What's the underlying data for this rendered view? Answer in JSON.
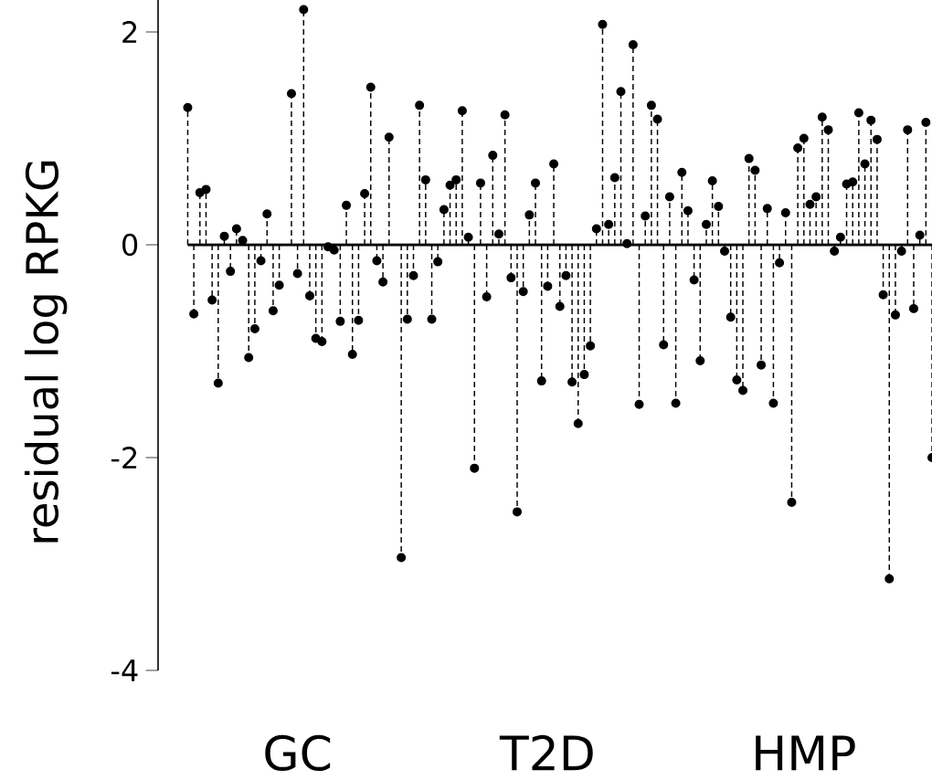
{
  "chart_data": {
    "type": "lollipop",
    "ylabel": "residual log RPKG",
    "categories": [
      null,
      null,
      null,
      null,
      null,
      null,
      null,
      null,
      null,
      null,
      null,
      null,
      null,
      null,
      null,
      null,
      null,
      null,
      "GC",
      null,
      null,
      null,
      null,
      null,
      null,
      null,
      null,
      null,
      null,
      null,
      null,
      null,
      null,
      null,
      null,
      null,
      null,
      null,
      null,
      null,
      null,
      null,
      null,
      null,
      null,
      null,
      null,
      null,
      null,
      null,
      null,
      null,
      null,
      null,
      null,
      null,
      null,
      null,
      null,
      "T2D",
      null,
      null,
      null,
      null,
      null,
      null,
      null,
      null,
      null,
      null,
      null,
      null,
      null,
      null,
      null,
      null,
      null,
      null,
      null,
      null,
      null,
      null,
      null,
      null,
      null,
      null,
      null,
      null,
      null,
      null,
      null,
      null,
      null,
      null,
      null,
      null,
      null,
      null,
      null,
      null,
      null,
      "HMP",
      null,
      null,
      null,
      null,
      null,
      null,
      null,
      null,
      null,
      null,
      null,
      null,
      null,
      null,
      null,
      null,
      null,
      null,
      null,
      null,
      null
    ],
    "values": [
      1.29,
      -0.65,
      0.49,
      0.52,
      -0.52,
      -1.3,
      0.08,
      -0.25,
      0.15,
      0.04,
      -1.06,
      -0.79,
      -0.15,
      0.29,
      -0.62,
      -0.38,
      null,
      1.42,
      -0.27,
      2.21,
      -0.48,
      -0.88,
      -0.91,
      -0.02,
      -0.05,
      -0.72,
      0.37,
      -1.03,
      -0.71,
      0.48,
      1.48,
      -0.15,
      -0.35,
      1.01,
      null,
      -2.94,
      -0.7,
      -0.29,
      1.31,
      0.61,
      -0.7,
      -0.16,
      0.33,
      0.56,
      0.61,
      1.26,
      0.07,
      -2.1,
      0.58,
      -0.49,
      0.84,
      0.1,
      1.22,
      -0.31,
      -2.51,
      -0.44,
      0.28,
      0.58,
      -1.28,
      -0.39,
      0.76,
      -0.58,
      -0.29,
      -1.29,
      -1.68,
      -1.22,
      -0.95,
      0.15,
      2.07,
      0.19,
      0.63,
      1.44,
      0.01,
      1.88,
      -1.5,
      0.27,
      1.31,
      1.18,
      -0.94,
      0.45,
      -1.49,
      0.68,
      0.32,
      -0.33,
      -1.09,
      0.19,
      0.6,
      0.36,
      -0.06,
      -0.68,
      -1.27,
      -1.37,
      0.81,
      0.7,
      -1.13,
      0.34,
      -1.49,
      -0.17,
      0.3,
      -2.42,
      0.91,
      1.0,
      0.38,
      0.45,
      1.2,
      1.08,
      -0.06,
      0.07,
      0.57,
      0.59,
      1.24,
      0.76,
      1.17,
      0.99,
      -0.47,
      -3.14,
      -0.66,
      -0.06,
      1.08,
      -0.6,
      0.09,
      1.15,
      -2.0
    ],
    "color": "#000000",
    "marker": "circle",
    "line_style": "dashed",
    "ylim": [
      -4,
      2.3
    ],
    "yticks": [
      -4,
      -2,
      0,
      2
    ],
    "ref_lines": [
      {
        "axis": "y",
        "value": 0
      }
    ],
    "grid": false
  }
}
